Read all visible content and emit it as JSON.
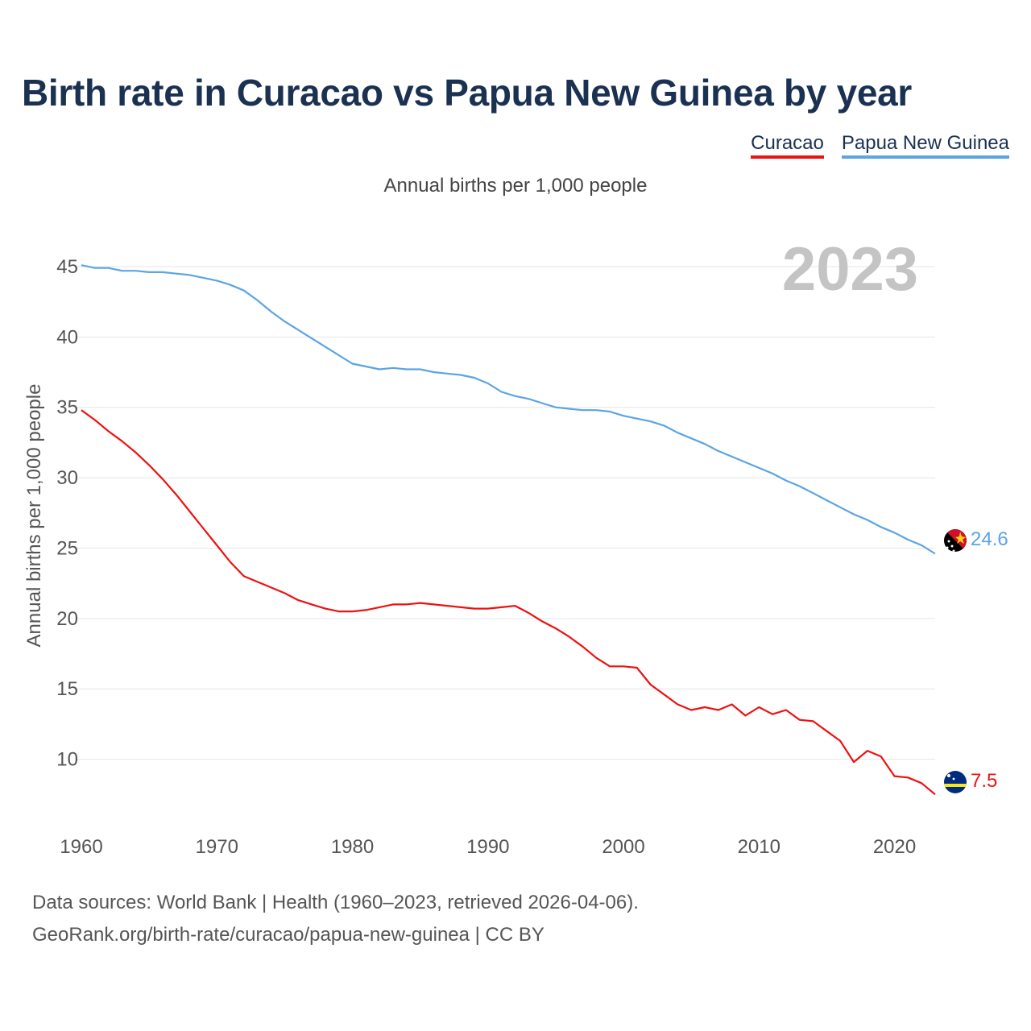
{
  "title": "Birth rate in Curacao vs Papua New Guinea by year",
  "subtitle": "Annual births per 1,000 people",
  "legend": [
    {
      "label": "Curacao",
      "color": "#ee1111"
    },
    {
      "label": "Papua New Guinea",
      "color": "#5ba4e5"
    }
  ],
  "year_watermark": "2023",
  "footer": {
    "line1": "Data sources: World Bank | Health (1960–2023, retrieved 2026-04-06).",
    "line2": "GeoRank.org/birth-rate/curacao/papua-new-guinea | CC BY"
  },
  "end_labels": {
    "curacao": "7.5",
    "png": "24.6"
  },
  "chart_data": {
    "type": "line",
    "title": "Birth rate in Curacao vs Papua New Guinea by year",
    "ylabel": "Annual births per 1,000 people",
    "xlabel": "",
    "xlim": [
      1960,
      2023
    ],
    "ylim": [
      5,
      47
    ],
    "x_ticks": [
      1960,
      1970,
      1980,
      1990,
      2000,
      2010,
      2020
    ],
    "y_ticks": [
      10,
      15,
      20,
      25,
      30,
      35,
      40,
      45
    ],
    "grid": true,
    "x": [
      1960,
      1961,
      1962,
      1963,
      1964,
      1965,
      1966,
      1967,
      1968,
      1969,
      1970,
      1971,
      1972,
      1973,
      1974,
      1975,
      1976,
      1977,
      1978,
      1979,
      1980,
      1981,
      1982,
      1983,
      1984,
      1985,
      1986,
      1987,
      1988,
      1989,
      1990,
      1991,
      1992,
      1993,
      1994,
      1995,
      1996,
      1997,
      1998,
      1999,
      2000,
      2001,
      2002,
      2003,
      2004,
      2005,
      2006,
      2007,
      2008,
      2009,
      2010,
      2011,
      2012,
      2013,
      2014,
      2015,
      2016,
      2017,
      2018,
      2019,
      2020,
      2021,
      2022,
      2023
    ],
    "series": [
      {
        "name": "Curacao",
        "color": "#ee1111",
        "values": [
          34.8,
          34.1,
          33.3,
          32.6,
          31.8,
          30.9,
          29.9,
          28.8,
          27.6,
          26.4,
          25.2,
          24.0,
          23.0,
          22.6,
          22.2,
          21.8,
          21.3,
          21.0,
          20.7,
          20.5,
          20.5,
          20.6,
          20.8,
          21.0,
          21.0,
          21.1,
          21.0,
          20.9,
          20.8,
          20.7,
          20.7,
          20.8,
          20.9,
          20.4,
          19.8,
          19.3,
          18.7,
          18.0,
          17.2,
          16.6,
          16.6,
          16.5,
          15.3,
          14.6,
          13.9,
          13.5,
          13.7,
          13.5,
          13.9,
          13.1,
          13.7,
          13.2,
          13.5,
          12.8,
          12.7,
          12.0,
          11.3,
          9.8,
          10.6,
          10.2,
          8.8,
          8.7,
          8.3,
          7.5
        ]
      },
      {
        "name": "Papua New Guinea",
        "color": "#5ba4e5",
        "values": [
          45.1,
          44.9,
          44.9,
          44.7,
          44.7,
          44.6,
          44.6,
          44.5,
          44.4,
          44.2,
          44.0,
          43.7,
          43.3,
          42.6,
          41.8,
          41.1,
          40.5,
          39.9,
          39.3,
          38.7,
          38.1,
          37.9,
          37.7,
          37.8,
          37.7,
          37.7,
          37.5,
          37.4,
          37.3,
          37.1,
          36.7,
          36.1,
          35.8,
          35.6,
          35.3,
          35.0,
          34.9,
          34.8,
          34.8,
          34.7,
          34.4,
          34.2,
          34.0,
          33.7,
          33.2,
          32.8,
          32.4,
          31.9,
          31.5,
          31.1,
          30.7,
          30.3,
          29.8,
          29.4,
          28.9,
          28.4,
          27.9,
          27.4,
          27.0,
          26.5,
          26.1,
          25.6,
          25.2,
          24.6
        ]
      }
    ],
    "annotations": [
      "2023"
    ]
  }
}
